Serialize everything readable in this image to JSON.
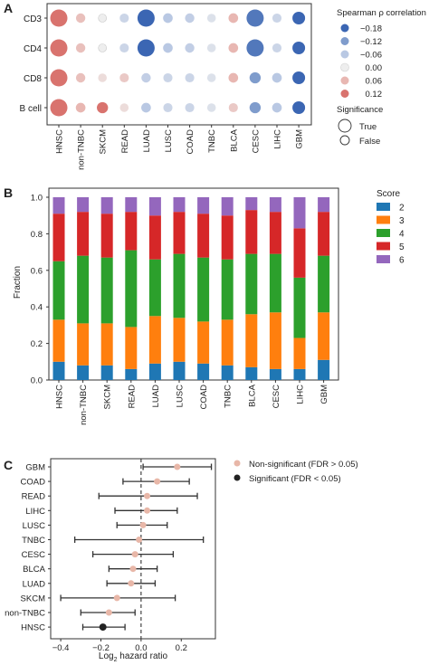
{
  "chart_data": [
    {
      "panel": "A",
      "type": "scatter",
      "subtype": "dot-matrix",
      "rows": [
        "CD3",
        "CD4",
        "CD8",
        "B cell"
      ],
      "columns": [
        "HNSC",
        "non-TNBC",
        "SKCM",
        "READ",
        "LUAD",
        "LUSC",
        "COAD",
        "TNBC",
        "BLCA",
        "CESC",
        "LIHC",
        "GBM"
      ],
      "rho": [
        [
          0.12,
          0.05,
          0.0,
          -0.04,
          -0.18,
          -0.06,
          -0.05,
          -0.02,
          0.06,
          -0.16,
          -0.04,
          -0.18
        ],
        [
          0.12,
          0.05,
          0.0,
          -0.04,
          -0.18,
          -0.06,
          -0.05,
          -0.02,
          0.06,
          -0.16,
          -0.04,
          -0.18
        ],
        [
          0.12,
          0.05,
          0.02,
          0.04,
          -0.05,
          -0.04,
          -0.04,
          -0.02,
          0.06,
          -0.12,
          -0.06,
          -0.18
        ],
        [
          0.12,
          0.06,
          0.12,
          0.02,
          -0.06,
          -0.04,
          -0.04,
          -0.02,
          0.04,
          -0.12,
          -0.06,
          -0.18
        ]
      ],
      "significant": [
        [
          true,
          false,
          false,
          false,
          true,
          false,
          false,
          false,
          false,
          true,
          false,
          false
        ],
        [
          true,
          false,
          false,
          false,
          true,
          false,
          false,
          false,
          false,
          true,
          false,
          false
        ],
        [
          true,
          false,
          false,
          false,
          false,
          false,
          false,
          false,
          false,
          false,
          false,
          false
        ],
        [
          true,
          false,
          false,
          false,
          false,
          false,
          false,
          false,
          false,
          false,
          false,
          false
        ]
      ],
      "legend": {
        "title": "Spearman ρ correlation",
        "values": [
          "−0.18",
          "−0.12",
          "−0.06",
          "0.00",
          "0.06",
          "0.12"
        ],
        "colors": [
          "#3b66b3",
          "#7f9ccc",
          "#b9c8e3",
          "#eeeeee",
          "#e8b7b2",
          "#d9736e"
        ],
        "sig_title": "Significance",
        "sig_labels": [
          "True",
          "False"
        ]
      }
    },
    {
      "panel": "B",
      "type": "bar",
      "stacked": true,
      "categories": [
        "HNSC",
        "non-TNBC",
        "SKCM",
        "READ",
        "LUAD",
        "LUSC",
        "COAD",
        "TNBC",
        "BLCA",
        "CESC",
        "LIHC",
        "GBM"
      ],
      "ylabel": "Fraction",
      "ylim": [
        0,
        1.0
      ],
      "yticks": [
        "0.0",
        "0.2",
        "0.4",
        "0.6",
        "0.8",
        "1.0"
      ],
      "legend_title": "Score",
      "series": [
        {
          "name": "2",
          "color": "#1f77b4",
          "values": [
            0.1,
            0.08,
            0.08,
            0.06,
            0.09,
            0.1,
            0.09,
            0.08,
            0.07,
            0.06,
            0.06,
            0.11
          ]
        },
        {
          "name": "3",
          "color": "#ff7f0e",
          "values": [
            0.23,
            0.23,
            0.23,
            0.23,
            0.26,
            0.24,
            0.23,
            0.25,
            0.29,
            0.31,
            0.17,
            0.26
          ]
        },
        {
          "name": "4",
          "color": "#2ca02c",
          "values": [
            0.32,
            0.37,
            0.36,
            0.42,
            0.31,
            0.35,
            0.35,
            0.33,
            0.33,
            0.32,
            0.33,
            0.31
          ]
        },
        {
          "name": "5",
          "color": "#d62728",
          "values": [
            0.26,
            0.24,
            0.24,
            0.21,
            0.24,
            0.23,
            0.24,
            0.24,
            0.24,
            0.23,
            0.27,
            0.24
          ]
        },
        {
          "name": "6",
          "color": "#9467bd",
          "values": [
            0.09,
            0.08,
            0.09,
            0.08,
            0.1,
            0.08,
            0.09,
            0.1,
            0.07,
            0.08,
            0.17,
            0.08
          ]
        }
      ]
    },
    {
      "panel": "C",
      "type": "scatter",
      "subtype": "forest",
      "categories": [
        "GBM",
        "COAD",
        "READ",
        "LIHC",
        "LUSC",
        "TNBC",
        "CESC",
        "BLCA",
        "LUAD",
        "SKCM",
        "non-TNBC",
        "HNSC"
      ],
      "estimate": [
        0.18,
        0.08,
        0.03,
        0.03,
        0.01,
        -0.01,
        -0.03,
        -0.04,
        -0.05,
        -0.12,
        -0.16,
        -0.19
      ],
      "ci_low": [
        0.01,
        -0.09,
        -0.21,
        -0.13,
        -0.12,
        -0.33,
        -0.24,
        -0.16,
        -0.17,
        -0.4,
        -0.3,
        -0.29
      ],
      "ci_high": [
        0.35,
        0.24,
        0.28,
        0.18,
        0.13,
        0.31,
        0.16,
        0.08,
        0.07,
        0.17,
        -0.03,
        -0.08
      ],
      "significant": [
        false,
        false,
        false,
        false,
        false,
        false,
        false,
        false,
        false,
        false,
        false,
        true
      ],
      "xlim": [
        -0.45,
        0.37
      ],
      "xticks": [
        "−0.4",
        "−0.2",
        "0.0",
        "0.2"
      ],
      "xtick_values": [
        -0.4,
        -0.2,
        0.0,
        0.2
      ],
      "xlabel_main": "Log",
      "xlabel_sub": "2",
      "xlabel_rest": " hazard ratio",
      "legend": [
        {
          "label": "Non-significant (FDR > 0.05)",
          "color": "#e8b7a8"
        },
        {
          "label": "Significant (FDR < 0.05)",
          "color": "#222222"
        }
      ]
    }
  ],
  "panel_labels": {
    "a": "A",
    "b": "B",
    "c": "C"
  }
}
